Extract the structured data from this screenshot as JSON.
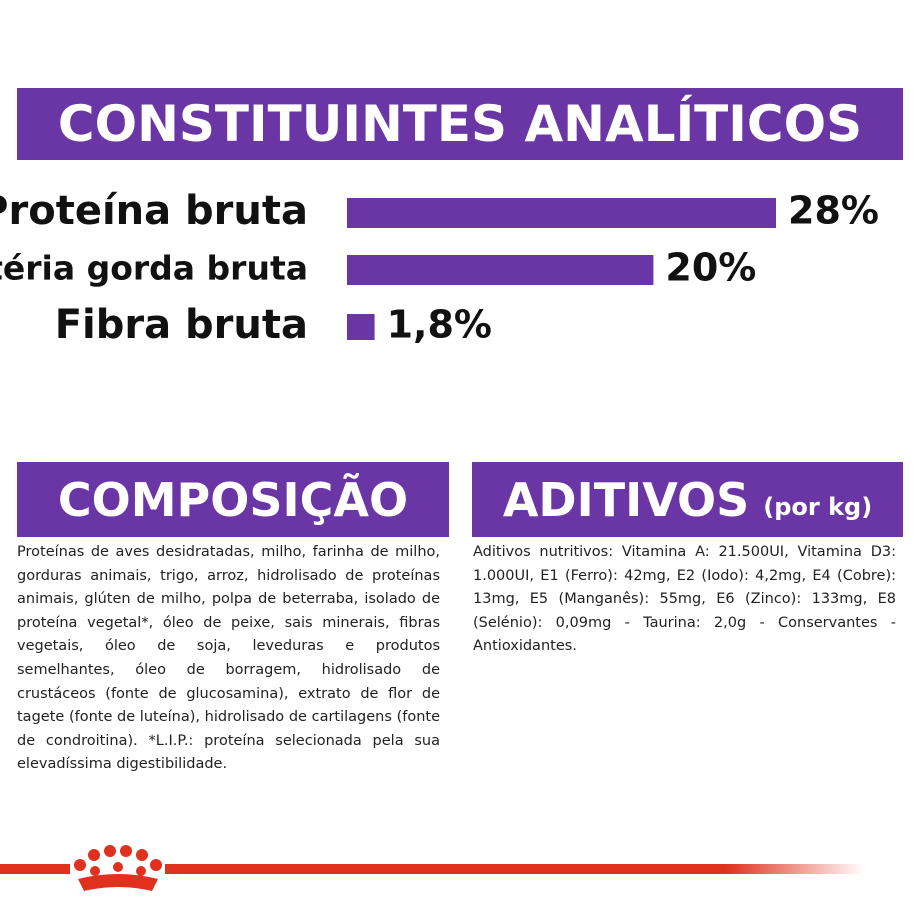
{
  "chart_data": {
    "type": "bar",
    "title": "CONSTITUINTES ANALÍTICOS",
    "categories": [
      "Proteína bruta",
      "Matéria gorda bruta",
      "Fibra bruta"
    ],
    "values": [
      28,
      20,
      1.8
    ],
    "value_labels": [
      "28%",
      "20%",
      "1,8%"
    ],
    "color": "#6a35a5"
  },
  "composicao": {
    "title": "COMPOSIÇÃO",
    "text": "Proteínas de aves desidratadas, milho, farinha de milho, gorduras animais, trigo, arroz, hidrolisado de proteínas animais, glúten de milho, polpa de beterraba, isolado de proteína vegetal*, óleo de peixe, sais minerais, fibras vegetais, óleo de soja, leveduras e produtos semelhantes, óleo de borragem, hidrolisado de crustáceos (fonte de glucosamina), extrato de flor de tagete (fonte de luteína), hidrolisado de cartilagens (fonte de condroitina). *L.I.P.: proteína selecionada pela sua elevadíssima digestibilidade."
  },
  "aditivos": {
    "title": "ADITIVOS",
    "subtitle": "(por kg)",
    "text": "Aditivos nutritivos: Vitamina A: 21.500UI, Vitamina D3: 1.000UI, E1 (Ferro): 42mg, E2 (Iodo): 4,2mg, E4 (Cobre): 13mg, E5 (Manganês): 55mg, E6 (Zinco): 133mg, E8 (Selénio): 0,09mg - Taurina: 2,0g - Conservantes - Antioxidantes."
  }
}
